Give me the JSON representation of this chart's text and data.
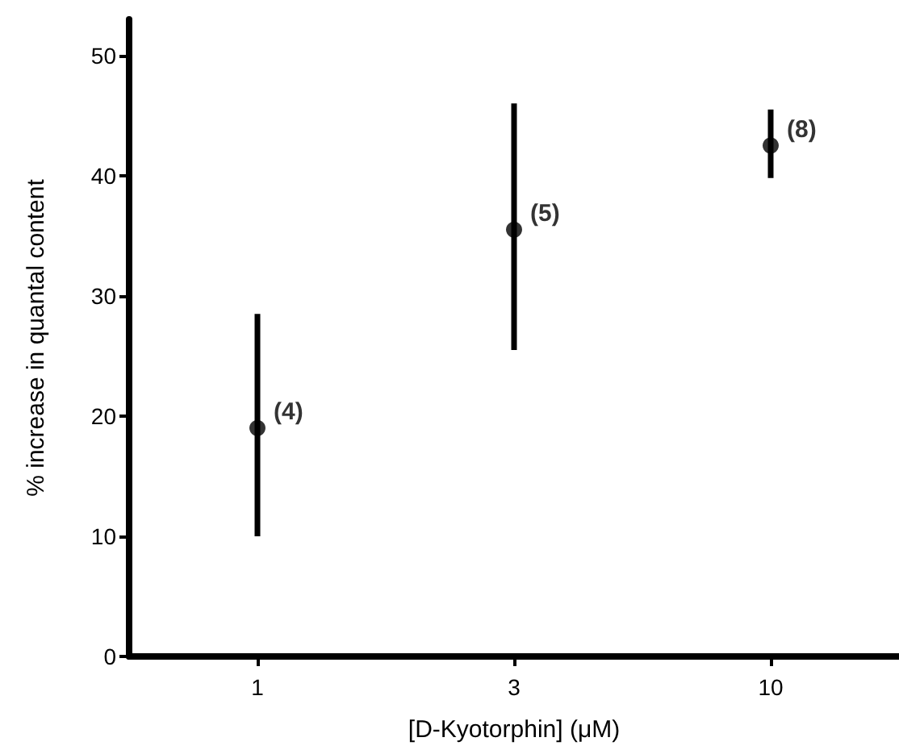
{
  "chart_data": {
    "type": "scatter",
    "xlabel": "[D-Kyotorphin] (μM)",
    "ylabel": "% increase in quantal content",
    "categories": [
      "1",
      "3",
      "10"
    ],
    "series": [
      {
        "color": "#000000",
        "values": [
          19,
          35.5,
          42.5
        ],
        "errors": [
          [
            10,
            28.5
          ],
          [
            25.5,
            46
          ],
          [
            39.8,
            45.5
          ]
        ]
      }
    ],
    "annotations": [
      {
        "text": "(4)",
        "x": "1",
        "y": 19
      },
      {
        "text": "(5)",
        "x": "3",
        "y": 35.5
      },
      {
        "text": "(8)",
        "x": "10",
        "y": 42.5
      }
    ],
    "ylim": [
      0,
      53
    ],
    "yticks": [
      0,
      10,
      20,
      30,
      40,
      50
    ],
    "marker": "circle"
  }
}
